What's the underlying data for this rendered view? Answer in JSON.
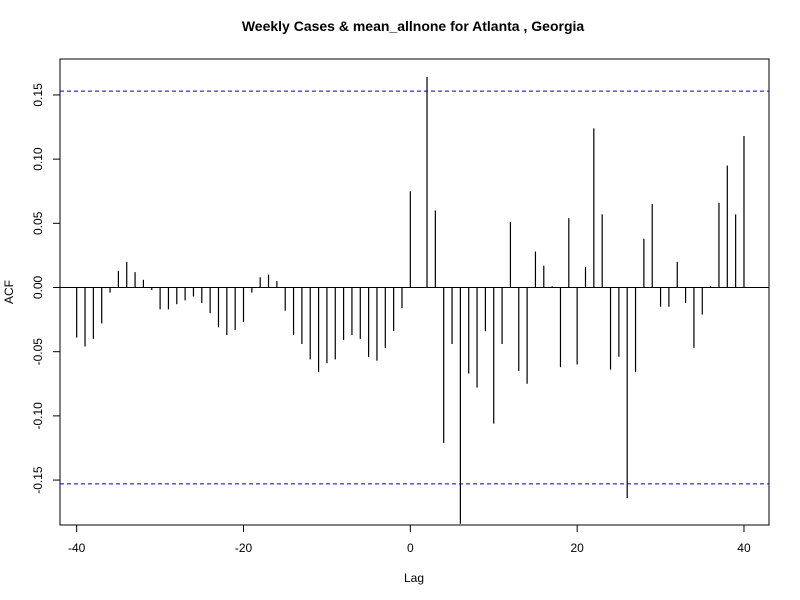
{
  "chart_data": {
    "type": "bar",
    "title": "Weekly Cases & mean_allnone for Atlanta , Georgia",
    "xlabel": "Lag",
    "ylabel": "ACF",
    "xlim": [
      -42,
      43
    ],
    "ylim": [
      -0.185,
      0.178
    ],
    "x_ticks": [
      -40,
      -20,
      0,
      20,
      40
    ],
    "x_tick_labels": [
      "-40",
      "-20",
      "0",
      "20",
      "40"
    ],
    "y_ticks": [
      -0.15,
      -0.1,
      -0.05,
      0.0,
      0.05,
      0.1,
      0.15
    ],
    "y_tick_labels": [
      "-0.15",
      "-0.10",
      "-0.05",
      "0.00",
      "0.05",
      "0.10",
      "0.15"
    ],
    "confidence_bound": 0.153,
    "grid": false,
    "colors": {
      "bars": "#000000",
      "bounds": "#0000cc",
      "zero_line": "#000000"
    },
    "lags": [
      -40,
      -39,
      -38,
      -37,
      -36,
      -35,
      -34,
      -33,
      -32,
      -31,
      -30,
      -29,
      -28,
      -27,
      -26,
      -25,
      -24,
      -23,
      -22,
      -21,
      -20,
      -19,
      -18,
      -17,
      -16,
      -15,
      -14,
      -13,
      -12,
      -11,
      -10,
      -9,
      -8,
      -7,
      -6,
      -5,
      -4,
      -3,
      -2,
      -1,
      0,
      1,
      2,
      3,
      4,
      5,
      6,
      7,
      8,
      9,
      10,
      11,
      12,
      13,
      14,
      15,
      16,
      17,
      18,
      19,
      20,
      21,
      22,
      23,
      24,
      25,
      26,
      27,
      28,
      29,
      30,
      31,
      32,
      33,
      34,
      35,
      36,
      37,
      38,
      39,
      40
    ],
    "values": [
      -0.039,
      -0.046,
      -0.04,
      -0.028,
      -0.004,
      0.013,
      0.02,
      0.012,
      0.006,
      -0.002,
      -0.017,
      -0.017,
      -0.013,
      -0.01,
      -0.007,
      -0.012,
      -0.02,
      -0.031,
      -0.037,
      -0.033,
      -0.027,
      -0.004,
      0.008,
      0.01,
      0.005,
      -0.018,
      -0.037,
      -0.044,
      -0.056,
      -0.066,
      -0.059,
      -0.056,
      -0.041,
      -0.037,
      -0.04,
      -0.054,
      -0.057,
      -0.047,
      -0.034,
      -0.016,
      0.075,
      0.0,
      0.164,
      0.06,
      -0.121,
      -0.044,
      -0.184,
      -0.067,
      -0.078,
      -0.034,
      -0.106,
      -0.044,
      0.051,
      -0.065,
      -0.075,
      0.028,
      0.017,
      0.001,
      -0.062,
      0.054,
      -0.06,
      0.016,
      0.124,
      0.057,
      -0.064,
      -0.054,
      -0.164,
      -0.066,
      0.038,
      0.065,
      -0.015,
      -0.015,
      0.02,
      -0.012,
      -0.047,
      -0.021,
      0.001,
      0.066,
      0.095,
      0.057,
      0.118
    ]
  }
}
